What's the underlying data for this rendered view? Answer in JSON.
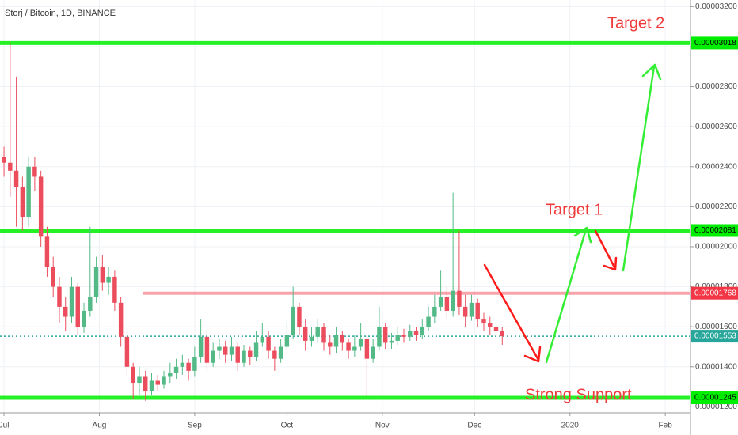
{
  "chart_data": {
    "type": "candlestick",
    "title": "Storj / Bitcoin, 1D, BINANCE",
    "up_color": "#53b987",
    "down_color": "#eb4d5c",
    "grid": true,
    "xlim": [
      -1.3,
      223.2
    ],
    "xticks": [
      {
        "value": 0,
        "label": "Jul"
      },
      {
        "value": 31,
        "label": "Aug"
      },
      {
        "value": 62,
        "label": "Sep"
      },
      {
        "value": 92,
        "label": "Oct"
      },
      {
        "value": 123,
        "label": "Nov"
      },
      {
        "value": 153,
        "label": "Dec"
      },
      {
        "value": 184,
        "label": "2020"
      },
      {
        "value": 215,
        "label": "Feb"
      }
    ],
    "ylim": [
      1.17e-05,
      3.233e-05
    ],
    "yticks": [
      {
        "value": 1.2e-05,
        "label": "0.00001200"
      },
      {
        "value": 1.4e-05,
        "label": "0.00001400"
      },
      {
        "value": 1.6e-05,
        "label": "0.00001600"
      },
      {
        "value": 1.8e-05,
        "label": "0.00001800"
      },
      {
        "value": 2e-05,
        "label": "0.00002000"
      },
      {
        "value": 2.2e-05,
        "label": "0.00002200"
      },
      {
        "value": 2.4e-05,
        "label": "0.00002400"
      },
      {
        "value": 2.6e-05,
        "label": "0.00002600"
      },
      {
        "value": 2.8e-05,
        "label": "0.00002800"
      },
      {
        "value": 3e-05,
        "label": "0.00003000"
      },
      {
        "value": 3.2e-05,
        "label": "0.00003200"
      }
    ],
    "x": [
      0,
      2,
      4,
      6,
      8,
      10,
      12,
      14,
      16,
      18,
      20,
      22,
      24,
      26,
      28,
      30,
      32,
      34,
      36,
      38,
      40,
      42,
      44,
      46,
      48,
      50,
      52,
      54,
      56,
      58,
      60,
      62,
      64,
      66,
      68,
      70,
      72,
      74,
      76,
      78,
      80,
      82,
      84,
      86,
      88,
      90,
      92,
      94,
      96,
      98,
      100,
      102,
      104,
      106,
      108,
      110,
      112,
      114,
      116,
      118,
      120,
      122,
      124,
      126,
      128,
      130,
      132,
      134,
      136,
      138,
      140,
      142,
      144,
      146,
      148,
      150,
      152,
      154,
      156,
      158,
      160,
      162
    ],
    "open": [
      2.45e-05,
      2.42e-05,
      2.38e-05,
      2.3e-05,
      2.15e-05,
      2.4e-05,
      2.35e-05,
      2.05e-05,
      1.9e-05,
      1.8e-05,
      1.7e-05,
      1.65e-05,
      1.8e-05,
      1.6e-05,
      1.68e-05,
      1.75e-05,
      1.9e-05,
      1.82e-05,
      1.85e-05,
      1.72e-05,
      1.55e-05,
      1.4e-05,
      1.32e-05,
      1.35e-05,
      1.28e-05,
      1.33e-05,
      1.31e-05,
      1.35e-05,
      1.37e-05,
      1.4e-05,
      1.42e-05,
      1.38e-05,
      1.45e-05,
      1.55e-05,
      1.42e-05,
      1.48e-05,
      1.5e-05,
      1.46e-05,
      1.5e-05,
      1.42e-05,
      1.48e-05,
      1.45e-05,
      1.52e-05,
      1.55e-05,
      1.48e-05,
      1.44e-05,
      1.5e-05,
      1.56e-05,
      1.7e-05,
      1.6e-05,
      1.53e-05,
      1.55e-05,
      1.6e-05,
      1.52e-05,
      1.5e-05,
      1.56e-05,
      1.52e-05,
      1.48e-05,
      1.5e-05,
      1.54e-05,
      1.44e-05,
      1.5e-05,
      1.6e-05,
      1.52e-05,
      1.53e-05,
      1.56e-05,
      1.55e-05,
      1.58e-05,
      1.56e-05,
      1.6e-05,
      1.65e-05,
      1.7e-05,
      1.75e-05,
      1.68e-05,
      1.78e-05,
      1.7e-05,
      1.65e-05,
      1.72e-05,
      1.64e-05,
      1.62e-05,
      1.6e-05,
      1.58e-05
    ],
    "high": [
      2.5e-05,
      3.02e-05,
      2.85e-05,
      2.35e-05,
      2.45e-05,
      2.45e-05,
      2.38e-05,
      2.1e-05,
      1.95e-05,
      1.85e-05,
      1.75e-05,
      1.85e-05,
      1.82e-05,
      1.72e-05,
      2.1e-05,
      1.95e-05,
      1.96e-05,
      1.9e-05,
      1.88e-05,
      1.75e-05,
      1.58e-05,
      1.42e-05,
      1.4e-05,
      1.38e-05,
      1.37e-05,
      1.36e-05,
      1.38e-05,
      1.42e-05,
      1.44e-05,
      1.46e-05,
      1.44e-05,
      1.5e-05,
      1.64e-05,
      1.58e-05,
      1.52e-05,
      1.54e-05,
      1.53e-05,
      1.55e-05,
      1.52e-05,
      1.51e-05,
      1.5e-05,
      1.58e-05,
      1.62e-05,
      1.58e-05,
      1.5e-05,
      1.54e-05,
      1.62e-05,
      1.8e-05,
      1.72e-05,
      1.64e-05,
      1.6e-05,
      1.64e-05,
      1.62e-05,
      1.56e-05,
      1.6e-05,
      1.58e-05,
      1.54e-05,
      1.56e-05,
      1.62e-05,
      1.56e-05,
      1.54e-05,
      1.7e-05,
      1.62e-05,
      1.57e-05,
      1.6e-05,
      1.59e-05,
      1.61e-05,
      1.6e-05,
      1.64e-05,
      1.7e-05,
      1.76e-05,
      1.88e-05,
      1.8e-05,
      2.27e-05,
      2.08e-05,
      1.76e-05,
      1.76e-05,
      1.74e-05,
      1.67e-05,
      1.65e-05,
      1.62e-05,
      1.6e-05
    ],
    "low": [
      2.35e-05,
      2.25e-05,
      2.1e-05,
      2.08e-05,
      2.1e-05,
      2.28e-05,
      2e-05,
      1.85e-05,
      1.75e-05,
      1.62e-05,
      1.58e-05,
      1.62e-05,
      1.56e-05,
      1.57e-05,
      1.65e-05,
      1.72e-05,
      1.78e-05,
      1.76e-05,
      1.68e-05,
      1.5e-05,
      1.35e-05,
      1.24e-05,
      1.26e-05,
      1.23e-05,
      1.26e-05,
      1.28e-05,
      1.29e-05,
      1.32e-05,
      1.34e-05,
      1.36e-05,
      1.33e-05,
      1.35e-05,
      1.42e-05,
      1.38e-05,
      1.4e-05,
      1.44e-05,
      1.42e-05,
      1.43e-05,
      1.38e-05,
      1.4e-05,
      1.41e-05,
      1.43e-05,
      1.5e-05,
      1.44e-05,
      1.38e-05,
      1.42e-05,
      1.48e-05,
      1.54e-05,
      1.56e-05,
      1.48e-05,
      1.5e-05,
      1.52e-05,
      1.48e-05,
      1.46e-05,
      1.47e-05,
      1.48e-05,
      1.44e-05,
      1.45e-05,
      1.48e-05,
      1.25e-05,
      1.42e-05,
      1.48e-05,
      1.49e-05,
      1.49e-05,
      1.51e-05,
      1.52e-05,
      1.53e-05,
      1.53e-05,
      1.54e-05,
      1.58e-05,
      1.62e-05,
      1.68e-05,
      1.64e-05,
      1.65e-05,
      1.66e-05,
      1.6e-05,
      1.63e-05,
      1.6e-05,
      1.58e-05,
      1.56e-05,
      1.54e-05,
      1.51e-05
    ],
    "close": [
      2.42e-05,
      2.38e-05,
      2.3e-05,
      2.15e-05,
      2.4e-05,
      2.35e-05,
      2.05e-05,
      1.9e-05,
      1.8e-05,
      1.7e-05,
      1.65e-05,
      1.8e-05,
      1.6e-05,
      1.68e-05,
      1.75e-05,
      1.9e-05,
      1.82e-05,
      1.85e-05,
      1.72e-05,
      1.55e-05,
      1.4e-05,
      1.32e-05,
      1.35e-05,
      1.28e-05,
      1.33e-05,
      1.31e-05,
      1.35e-05,
      1.37e-05,
      1.4e-05,
      1.42e-05,
      1.38e-05,
      1.45e-05,
      1.55e-05,
      1.42e-05,
      1.48e-05,
      1.5e-05,
      1.46e-05,
      1.5e-05,
      1.42e-05,
      1.48e-05,
      1.45e-05,
      1.52e-05,
      1.55e-05,
      1.48e-05,
      1.44e-05,
      1.5e-05,
      1.56e-05,
      1.7e-05,
      1.6e-05,
      1.53e-05,
      1.55e-05,
      1.6e-05,
      1.52e-05,
      1.5e-05,
      1.56e-05,
      1.52e-05,
      1.48e-05,
      1.5e-05,
      1.54e-05,
      1.44e-05,
      1.5e-05,
      1.6e-05,
      1.52e-05,
      1.53e-05,
      1.56e-05,
      1.55e-05,
      1.58e-05,
      1.56e-05,
      1.6e-05,
      1.65e-05,
      1.7e-05,
      1.75e-05,
      1.68e-05,
      1.78e-05,
      1.7e-05,
      1.65e-05,
      1.72e-05,
      1.64e-05,
      1.62e-05,
      1.6e-05,
      1.58e-05,
      1.553e-05
    ],
    "levels": [
      {
        "value": 3.018e-05,
        "color": "#00ee00",
        "style": "solid"
      },
      {
        "value": 2.081e-05,
        "color": "#00ee00",
        "style": "solid"
      },
      {
        "value": 1.768e-05,
        "color": "#f23645",
        "style": "ray"
      },
      {
        "value": 1.553e-05,
        "color": "#26a69a",
        "style": "dotted"
      },
      {
        "value": 1.245e-05,
        "color": "#00ee00",
        "style": "solid"
      }
    ],
    "annotations": [
      "Target 2",
      "Target 1",
      "Strong Support"
    ]
  }
}
